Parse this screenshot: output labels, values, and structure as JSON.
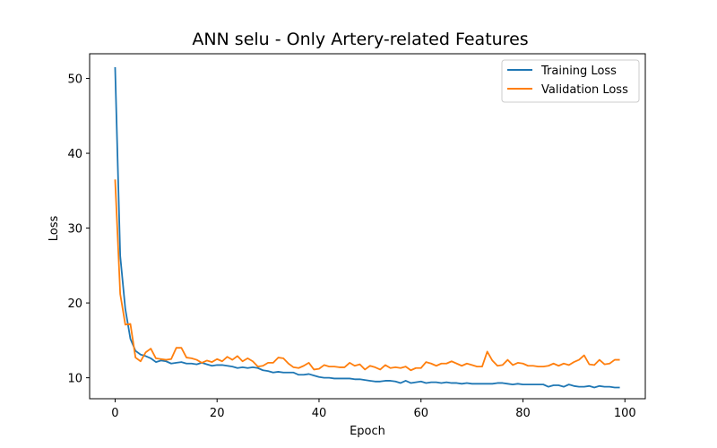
{
  "chart_data": {
    "type": "line",
    "title": "ANN selu - Only Artery-related Features",
    "xlabel": "Epoch",
    "ylabel": "Loss",
    "xlim": [
      -5,
      104
    ],
    "ylim": [
      7.2,
      53.3
    ],
    "xticks": [
      0,
      20,
      40,
      60,
      80,
      100
    ],
    "yticks": [
      10,
      20,
      30,
      40,
      50
    ],
    "grid": false,
    "legend_position": "upper right",
    "series": [
      {
        "name": "Training Loss",
        "color": "#1f77b4",
        "x": [
          0,
          1,
          2,
          3,
          4,
          5,
          6,
          7,
          8,
          9,
          10,
          11,
          12,
          13,
          14,
          15,
          16,
          17,
          18,
          19,
          20,
          21,
          22,
          23,
          24,
          25,
          26,
          27,
          28,
          29,
          30,
          31,
          32,
          33,
          34,
          35,
          36,
          37,
          38,
          39,
          40,
          41,
          42,
          43,
          44,
          45,
          46,
          47,
          48,
          49,
          50,
          51,
          52,
          53,
          54,
          55,
          56,
          57,
          58,
          59,
          60,
          61,
          62,
          63,
          64,
          65,
          66,
          67,
          68,
          69,
          70,
          71,
          72,
          73,
          74,
          75,
          76,
          77,
          78,
          79,
          80,
          81,
          82,
          83,
          84,
          85,
          86,
          87,
          88,
          89,
          90,
          91,
          92,
          93,
          94,
          95,
          96,
          97,
          98,
          99
        ],
        "values": [
          51.5,
          26.3,
          19.2,
          15.2,
          13.6,
          13.1,
          12.9,
          12.6,
          12.1,
          12.3,
          12.2,
          11.9,
          12.0,
          12.1,
          11.9,
          11.9,
          11.8,
          12.0,
          11.8,
          11.6,
          11.7,
          11.7,
          11.6,
          11.5,
          11.3,
          11.4,
          11.3,
          11.4,
          11.3,
          11.0,
          10.9,
          10.7,
          10.8,
          10.7,
          10.7,
          10.7,
          10.4,
          10.4,
          10.5,
          10.3,
          10.1,
          10.0,
          10.0,
          9.9,
          9.9,
          9.9,
          9.9,
          9.8,
          9.8,
          9.7,
          9.6,
          9.5,
          9.5,
          9.6,
          9.6,
          9.5,
          9.3,
          9.6,
          9.3,
          9.4,
          9.5,
          9.3,
          9.4,
          9.4,
          9.3,
          9.4,
          9.3,
          9.3,
          9.2,
          9.3,
          9.2,
          9.2,
          9.2,
          9.2,
          9.2,
          9.3,
          9.3,
          9.2,
          9.1,
          9.2,
          9.1,
          9.1,
          9.1,
          9.1,
          9.1,
          8.8,
          9.0,
          9.0,
          8.8,
          9.1,
          8.9,
          8.8,
          8.8,
          8.9,
          8.7,
          8.9,
          8.8,
          8.8,
          8.7,
          8.7
        ]
      },
      {
        "name": "Validation Loss",
        "color": "#ff7f0e",
        "x": [
          0,
          1,
          2,
          3,
          4,
          5,
          6,
          7,
          8,
          9,
          10,
          11,
          12,
          13,
          14,
          15,
          16,
          17,
          18,
          19,
          20,
          21,
          22,
          23,
          24,
          25,
          26,
          27,
          28,
          29,
          30,
          31,
          32,
          33,
          34,
          35,
          36,
          37,
          38,
          39,
          40,
          41,
          42,
          43,
          44,
          45,
          46,
          47,
          48,
          49,
          50,
          51,
          52,
          53,
          54,
          55,
          56,
          57,
          58,
          59,
          60,
          61,
          62,
          63,
          64,
          65,
          66,
          67,
          68,
          69,
          70,
          71,
          72,
          73,
          74,
          75,
          76,
          77,
          78,
          79,
          80,
          81,
          82,
          83,
          84,
          85,
          86,
          87,
          88,
          89,
          90,
          91,
          92,
          93,
          94,
          95,
          96,
          97,
          98,
          99
        ],
        "values": [
          36.5,
          21.2,
          17.1,
          17.2,
          12.7,
          12.2,
          13.4,
          13.9,
          12.6,
          12.5,
          12.4,
          12.5,
          14.0,
          14.0,
          12.7,
          12.6,
          12.4,
          12.0,
          12.3,
          12.1,
          12.5,
          12.2,
          12.8,
          12.4,
          12.9,
          12.2,
          12.6,
          12.2,
          11.5,
          11.6,
          12.0,
          12.0,
          12.7,
          12.6,
          11.9,
          11.4,
          11.3,
          11.6,
          12.0,
          11.1,
          11.2,
          11.7,
          11.5,
          11.5,
          11.4,
          11.4,
          12.0,
          11.6,
          11.8,
          11.1,
          11.6,
          11.4,
          11.1,
          11.7,
          11.3,
          11.4,
          11.3,
          11.5,
          11.0,
          11.3,
          11.3,
          12.1,
          11.9,
          11.6,
          11.9,
          11.9,
          12.2,
          11.9,
          11.6,
          11.9,
          11.7,
          11.5,
          11.5,
          13.5,
          12.3,
          11.6,
          11.7,
          12.4,
          11.7,
          12.0,
          11.9,
          11.6,
          11.6,
          11.5,
          11.5,
          11.6,
          11.9,
          11.6,
          11.9,
          11.7,
          12.1,
          12.4,
          13.0,
          11.8,
          11.7,
          12.4,
          11.8,
          11.9,
          12.4,
          12.4
        ]
      }
    ]
  }
}
